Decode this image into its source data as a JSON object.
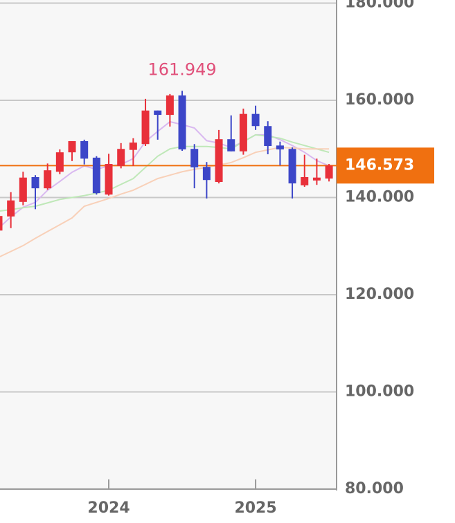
{
  "chart_data": {
    "type": "candlestick",
    "categories": [
      null,
      null,
      null,
      null,
      null,
      null,
      null,
      null,
      null,
      "2024",
      null,
      null,
      null,
      null,
      null,
      null,
      null,
      null,
      null,
      null,
      null,
      "2025",
      null,
      null,
      null,
      null,
      null,
      null
    ],
    "open": [
      133.2,
      136.1,
      139.1,
      144.2,
      141.9,
      145.3,
      149.3,
      151.6,
      148.2,
      140.6,
      146.5,
      149.8,
      151.0,
      157.9,
      157.0,
      161.0,
      150.0,
      146.3,
      143.2,
      152.0,
      149.5,
      157.2,
      154.7,
      150.7,
      150.0,
      142.5,
      143.5,
      143.9
    ],
    "high": [
      136.5,
      141.1,
      145.3,
      144.6,
      147.0,
      149.9,
      151.6,
      151.9,
      148.5,
      149.0,
      151.2,
      152.2,
      160.3,
      157.9,
      161.3,
      161.949,
      151.0,
      147.3,
      153.9,
      156.9,
      158.3,
      158.9,
      155.7,
      151.5,
      150.3,
      148.8,
      148.0,
      146.9
    ],
    "low": [
      132.8,
      133.7,
      138.4,
      137.6,
      141.6,
      144.8,
      147.5,
      146.8,
      140.6,
      140.4,
      146.0,
      146.5,
      150.6,
      151.9,
      154.6,
      149.6,
      141.9,
      139.8,
      142.9,
      149.5,
      148.8,
      153.9,
      148.9,
      146.6,
      139.8,
      142.2,
      142.6,
      143.3
    ],
    "close": [
      136.2,
      139.4,
      144.1,
      141.9,
      145.6,
      149.3,
      151.6,
      148.0,
      140.9,
      146.9,
      150.0,
      151.3,
      157.9,
      157.0,
      161.0,
      149.9,
      146.2,
      143.6,
      152.0,
      149.5,
      157.2,
      154.7,
      150.6,
      149.9,
      142.9,
      144.2,
      144.1,
      146.573
    ],
    "up_color": "#e8303a",
    "down_color": "#3c46c8",
    "moving_averages": [
      {
        "color": "#d9b8f0",
        "values": [
          133.7,
          136.0,
          138.0,
          139.0,
          141.5,
          143.3,
          145.2,
          146.5,
          145.8,
          146.5,
          146.8,
          148.0,
          151.5,
          153.6,
          155.6,
          155.0,
          154.3,
          151.7,
          151.2,
          150.3,
          151.5,
          152.9,
          152.9,
          151.9,
          150.7,
          149.3,
          147.6,
          146.5
        ]
      },
      {
        "color": "#bfe8b8",
        "values": [
          137.2,
          137.5,
          137.9,
          138.2,
          138.9,
          139.6,
          140.0,
          140.4,
          140.9,
          141.5,
          142.7,
          143.9,
          146.2,
          148.5,
          150.0,
          150.5,
          150.5,
          150.5,
          150.3,
          150.0,
          151.5,
          152.9,
          152.6,
          152.2,
          151.4,
          150.7,
          150.0,
          149.3
        ]
      },
      {
        "color": "#f8d0b8",
        "values": [
          127.7,
          128.9,
          130.1,
          131.6,
          133.0,
          134.4,
          135.8,
          138.2,
          139.0,
          139.8,
          140.7,
          141.5,
          142.7,
          143.9,
          144.6,
          145.3,
          145.8,
          146.2,
          146.7,
          147.2,
          148.2,
          149.3,
          149.8,
          150.3,
          150.2,
          150.0,
          150.0,
          150.0
        ]
      }
    ],
    "annotations": [
      {
        "label": "161.949",
        "value": 161.949,
        "color": "#e0507a"
      }
    ],
    "last_price": {
      "label": "146.573",
      "value": 146.573,
      "color": "#f07010"
    },
    "ylim": [
      80,
      180
    ],
    "yticks": [
      {
        "value": 80,
        "label": "80.000"
      },
      {
        "value": 100,
        "label": "100.000"
      },
      {
        "value": 120,
        "label": "120.000"
      },
      {
        "value": 140,
        "label": "140.000"
      },
      {
        "value": 160,
        "label": "160.000"
      },
      {
        "value": 180,
        "label": "180.000"
      }
    ],
    "grid": true
  }
}
